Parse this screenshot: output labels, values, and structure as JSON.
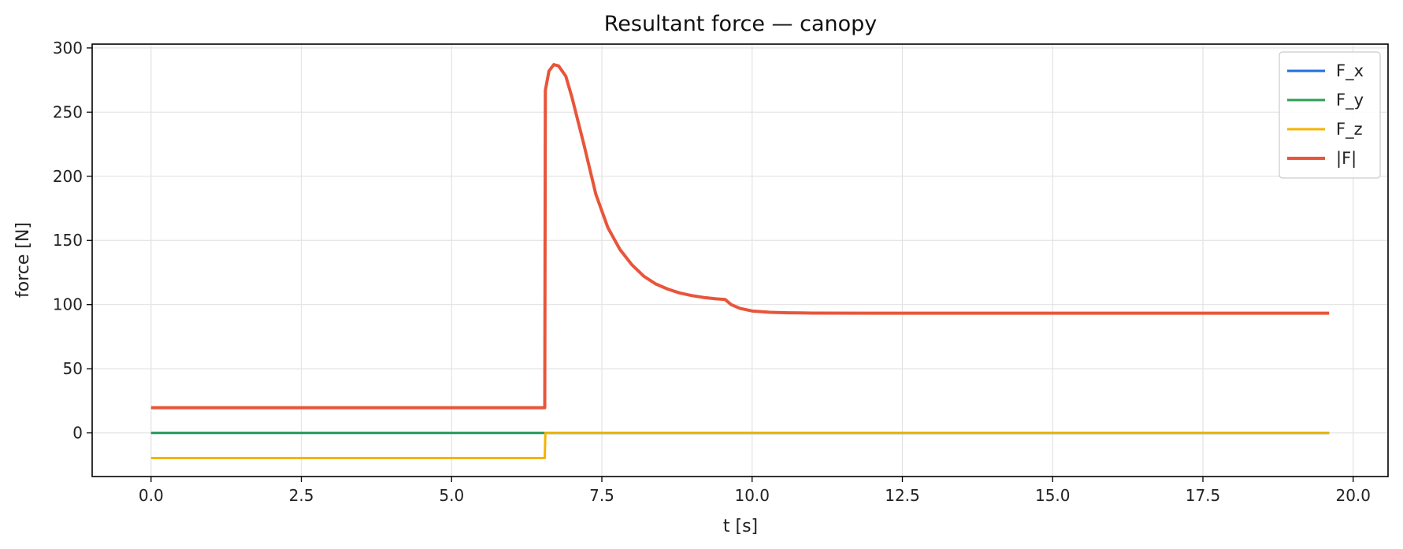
{
  "chart_data": {
    "type": "line",
    "title": "Resultant force — canopy",
    "xlabel": "t [s]",
    "ylabel": "force [N]",
    "xlim": [
      -0.98,
      20.58
    ],
    "ylim": [
      -34,
      303
    ],
    "xticks": [
      0.0,
      2.5,
      5.0,
      7.5,
      10.0,
      12.5,
      15.0,
      17.5,
      20.0
    ],
    "xtick_labels": [
      "0.0",
      "2.5",
      "5.0",
      "7.5",
      "10.0",
      "12.5",
      "15.0",
      "17.5",
      "20.0"
    ],
    "yticks": [
      0,
      50,
      100,
      150,
      200,
      250,
      300
    ],
    "ytick_labels": [
      "0",
      "50",
      "100",
      "150",
      "200",
      "250",
      "300"
    ],
    "grid": true,
    "legend_position": "top-right",
    "series": [
      {
        "name": "F_x",
        "color": "#1f6fe0",
        "points": [
          [
            0,
            0
          ],
          [
            19.6,
            0
          ]
        ]
      },
      {
        "name": "F_y",
        "color": "#2e9e55",
        "points": [
          [
            0,
            0
          ],
          [
            19.6,
            0
          ]
        ]
      },
      {
        "name": "F_z",
        "color": "#f4b400",
        "points": [
          [
            0,
            -19.6
          ],
          [
            6.55,
            -19.6
          ],
          [
            6.56,
            0
          ],
          [
            19.6,
            0
          ]
        ]
      },
      {
        "name": "|F|",
        "color": "#e8553a",
        "points": [
          [
            0,
            19.6
          ],
          [
            6.55,
            19.6
          ],
          [
            6.56,
            267
          ],
          [
            6.62,
            282
          ],
          [
            6.7,
            287
          ],
          [
            6.78,
            286
          ],
          [
            6.9,
            278
          ],
          [
            7.0,
            262
          ],
          [
            7.2,
            225
          ],
          [
            7.4,
            186
          ],
          [
            7.6,
            160
          ],
          [
            7.8,
            143
          ],
          [
            8.0,
            131
          ],
          [
            8.2,
            122
          ],
          [
            8.4,
            116
          ],
          [
            8.6,
            112
          ],
          [
            8.8,
            109
          ],
          [
            9.0,
            107
          ],
          [
            9.2,
            105.5
          ],
          [
            9.4,
            104.5
          ],
          [
            9.55,
            104
          ],
          [
            9.65,
            100
          ],
          [
            9.8,
            97
          ],
          [
            10.0,
            95
          ],
          [
            10.3,
            94
          ],
          [
            10.6,
            93.6
          ],
          [
            11.0,
            93.4
          ],
          [
            12.0,
            93.3
          ],
          [
            15.0,
            93.3
          ],
          [
            19.6,
            93.3
          ]
        ]
      }
    ]
  }
}
